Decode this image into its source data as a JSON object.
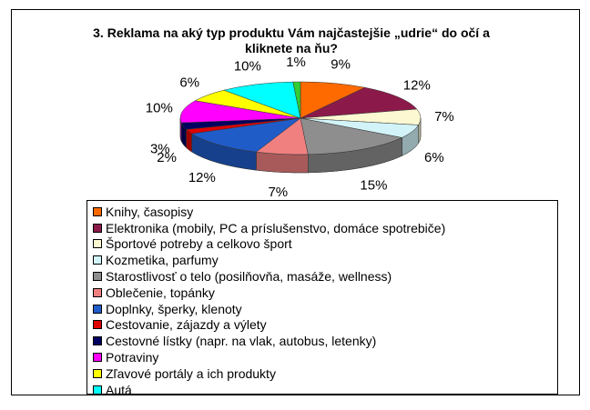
{
  "chart_data": {
    "type": "pie",
    "title_lines": [
      "3. Reklama na aký typ produktu Vám najčastejšie „udrie“ do očí a",
      "kliknete na ňu?"
    ],
    "slices": [
      {
        "name": "Knihy, časopisy",
        "value": 9,
        "label": "9%",
        "color": "#ff6a00"
      },
      {
        "name": "Elektronika (mobily, PC a príslušenstvo, domáce spotrebiče)",
        "value": 12,
        "label": "12%",
        "color": "#8b1a4a"
      },
      {
        "name": "Športové potreby a celkovo šport",
        "value": 7,
        "label": "7%",
        "color": "#fcf8d2"
      },
      {
        "name": "Kozmetika, parfumy",
        "value": 6,
        "label": "6%",
        "color": "#d2f4f8"
      },
      {
        "name": "Starostlivosť o telo (posilňovňa, masáže, wellness)",
        "value": 15,
        "label": "15%",
        "color": "#8e8e8e"
      },
      {
        "name": "Oblečenie, topánky",
        "value": 7,
        "label": "7%",
        "color": "#f08080"
      },
      {
        "name": "Doplnky, šperky, klenoty",
        "value": 12,
        "label": "12%",
        "color": "#1f5cc8"
      },
      {
        "name": "Cestovanie, zájazdy a výlety",
        "value": 2,
        "label": "2%",
        "color": "#e00000"
      },
      {
        "name": "Cestovné lístky (napr. na vlak, autobus, letenky)",
        "value": 3,
        "label": "3%",
        "color": "#000060"
      },
      {
        "name": "Potraviny",
        "value": 10,
        "label": "10%",
        "color": "#ff00ff"
      },
      {
        "name": "Zľavové portály a ich produkty",
        "value": 6,
        "label": "6%",
        "color": "#ffff00"
      },
      {
        "name": "Autá",
        "value": 10,
        "label": "10%",
        "color": "#00ffff"
      },
      {
        "name": "",
        "value": 1,
        "label": "1%",
        "color": "#33cc33"
      }
    ],
    "legend_placement": "bottom"
  }
}
